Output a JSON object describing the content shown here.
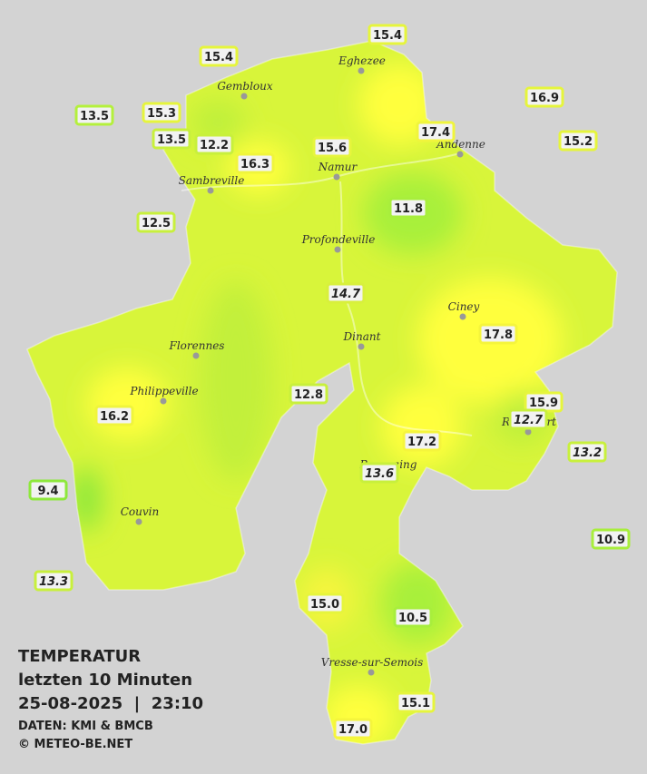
{
  "title": {
    "lines": [
      "TEMPERATUR",
      "letzten 10 Minuten",
      "25-08-2025  |  23:10"
    ],
    "source": "DATEN: KMI & BMCB",
    "copyright": "© METEO-BE.NET"
  },
  "cities": [
    "Eghezee",
    "Gembloux",
    "Andenne",
    "Namur",
    "Sambreville",
    "Profondeville",
    "Ciney",
    "Dinant",
    "Florennes",
    "Philippeville",
    "Rochefort",
    "Beauraing",
    "Couvin",
    "Vresse-sur-Semois"
  ],
  "stations": [
    {
      "label": "15.4",
      "border": "#e6f53c"
    },
    {
      "label": "15.4",
      "border": "#e6f53c"
    },
    {
      "label": "16.9",
      "border": "#e6f53c"
    },
    {
      "label": "13.5",
      "border": "#b4f03c"
    },
    {
      "label": "15.3",
      "border": "#e6f53c"
    },
    {
      "label": "17.4",
      "border": "#f0f53c"
    },
    {
      "label": "15.2",
      "border": "#e6f53c"
    },
    {
      "label": "13.5",
      "border": "#c8f03c"
    },
    {
      "label": "12.2",
      "border": "#c8f03c"
    },
    {
      "label": "15.6",
      "border": "#e6f53c"
    },
    {
      "label": "16.3",
      "border": "#f0f53c"
    },
    {
      "label": "11.8",
      "border": "#a8ee3c"
    },
    {
      "label": "12.5",
      "border": "#c8f03c"
    },
    {
      "label": "14.7",
      "border": "#d8f03c",
      "italic": true
    },
    {
      "label": "17.8",
      "border": "#f5f53c"
    },
    {
      "label": "12.8",
      "border": "#c8f03c"
    },
    {
      "label": "15.9",
      "border": "#e6f53c"
    },
    {
      "label": "12.7",
      "border": "#c8f03c",
      "italic": true
    },
    {
      "label": "16.2",
      "border": "#f0f53c"
    },
    {
      "label": "17.2",
      "border": "#f5f53c"
    },
    {
      "label": "13.2",
      "border": "#c8f03c",
      "italic": true
    },
    {
      "label": "13.6",
      "border": "#c8f03c",
      "italic": true
    },
    {
      "label": "9.4",
      "border": "#8ee83c"
    },
    {
      "label": "10.9",
      "border": "#a8ee3c"
    },
    {
      "label": "13.3",
      "border": "#c8f03c",
      "italic": true
    },
    {
      "label": "15.0",
      "border": "#e6f53c"
    },
    {
      "label": "10.5",
      "border": "#a8ee3c"
    },
    {
      "label": "15.1",
      "border": "#e6f53c"
    },
    {
      "label": "17.0",
      "border": "#f5f53c"
    }
  ]
}
